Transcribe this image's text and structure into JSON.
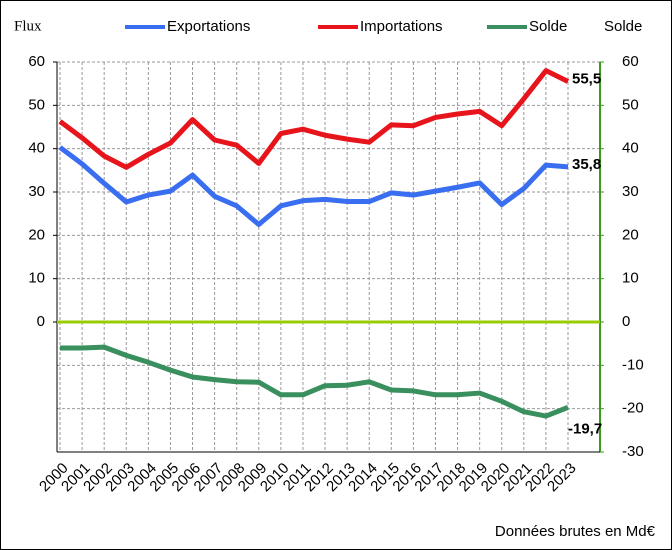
{
  "chart_data": {
    "type": "line",
    "left_axis_label": "Flux",
    "right_axis_label": "Solde",
    "footnote": "Données brutes en Md€",
    "categories": [
      "2000",
      "2001",
      "2002",
      "2003",
      "2004",
      "2005",
      "2006",
      "2007",
      "2008",
      "2009",
      "2010",
      "2011",
      "2012",
      "2013",
      "2014",
      "2015",
      "2016",
      "2017",
      "2018",
      "2019",
      "2020",
      "2021",
      "2022",
      "2023"
    ],
    "series": [
      {
        "name": "Exportations",
        "color": "#3a6ef0",
        "values": [
          40.3,
          36.5,
          32,
          27.7,
          29.3,
          30.2,
          33.9,
          29,
          26.8,
          22.5,
          26.8,
          28,
          28.3,
          27.8,
          27.8,
          29.8,
          29.3,
          30.2,
          31.1,
          32.1,
          27.1,
          30.8,
          36.2,
          35.8
        ],
        "value_labels": [
          null,
          null,
          null,
          null,
          null,
          null,
          null,
          null,
          null,
          null,
          null,
          null,
          null,
          null,
          null,
          null,
          null,
          null,
          null,
          null,
          null,
          null,
          null,
          "35,8"
        ]
      },
      {
        "name": "Importations",
        "color": "#e8141b",
        "values": [
          46.3,
          42.5,
          38.3,
          35.7,
          38.7,
          41.3,
          46.7,
          42,
          40.8,
          36.6,
          43.5,
          44.5,
          43.1,
          42.2,
          41.5,
          45.5,
          45.3,
          47.2,
          48,
          48.6,
          45.3,
          51.5,
          58,
          55.5
        ],
        "value_labels": [
          null,
          null,
          null,
          null,
          null,
          null,
          null,
          null,
          null,
          null,
          null,
          null,
          null,
          null,
          null,
          null,
          null,
          null,
          null,
          null,
          null,
          null,
          null,
          "55,5"
        ]
      },
      {
        "name": "Solde",
        "color": "#3a8f5e",
        "axis": "y2",
        "values": [
          -6,
          -6,
          -5.8,
          -7.7,
          -9.3,
          -11.1,
          -12.7,
          -13.3,
          -13.8,
          -13.9,
          -16.8,
          -16.8,
          -14.7,
          -14.6,
          -13.8,
          -15.7,
          -15.9,
          -16.8,
          -16.8,
          -16.4,
          -18.3,
          -20.7,
          -21.7,
          -19.7
        ],
        "value_labels": [
          null,
          null,
          null,
          null,
          null,
          null,
          null,
          null,
          null,
          null,
          null,
          null,
          null,
          null,
          null,
          null,
          null,
          null,
          null,
          null,
          null,
          null,
          null,
          "-19,7"
        ]
      }
    ],
    "ylim": [
      -30,
      60
    ],
    "yticks": [
      0,
      10,
      20,
      30,
      40,
      50,
      60
    ],
    "y2lim": [
      -30,
      60
    ],
    "y2ticks": [
      -30,
      -20,
      -10,
      0,
      10,
      20,
      30,
      40,
      50,
      60
    ],
    "right_axis_color": "#3a9a1a",
    "zero_line_color": "#99cc00",
    "grid": true
  }
}
